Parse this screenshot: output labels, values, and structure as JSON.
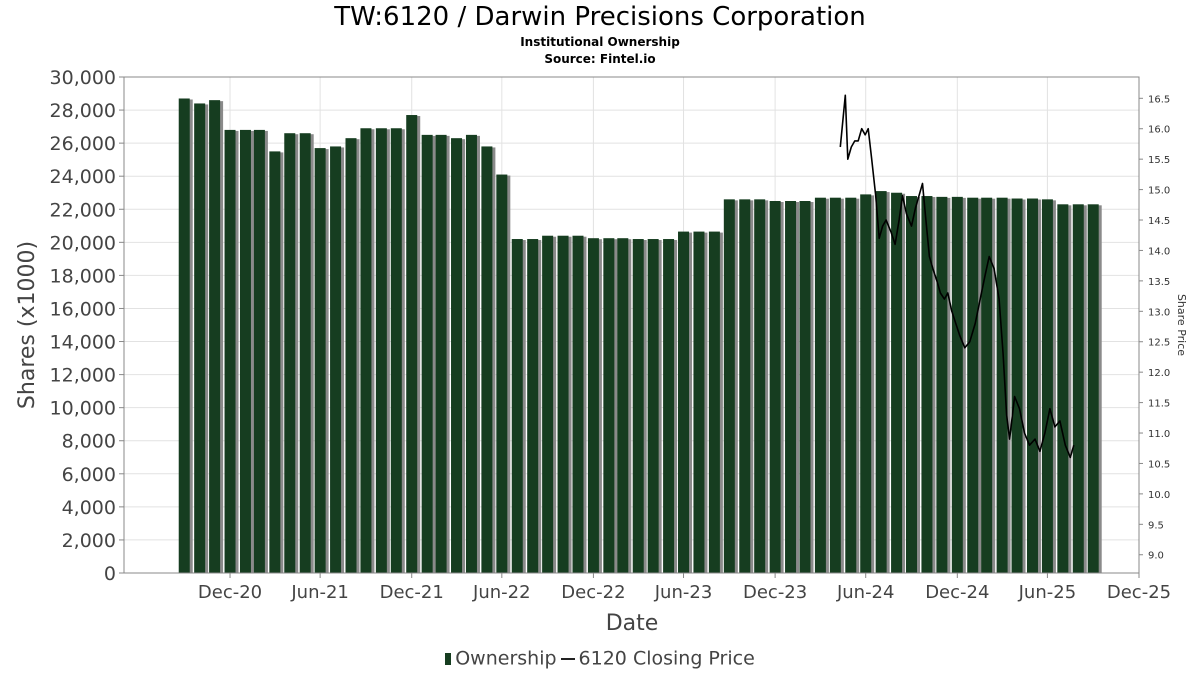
{
  "header": {
    "title": "TW:6120 / Darwin Precisions Corporation",
    "subtitle1": "Institutional Ownership",
    "subtitle2": "Source: Fintel.io"
  },
  "legend": {
    "ownership": "Ownership",
    "price": "6120 Closing Price"
  },
  "colors": {
    "bar": "#163d20",
    "bar_shadow": "#8a8a8a",
    "line": "#000000",
    "grid": "#e2e2e2"
  },
  "chart_data": {
    "type": "bar",
    "xlabel": "Date",
    "ylabel": "Shares (x1000)",
    "y2label": "Share Price",
    "ylim": [
      0,
      30000
    ],
    "y2lim": [
      8.7,
      16.85
    ],
    "grid": true,
    "legend_position": "bottom-center",
    "x_ticks": [
      "Dec-20",
      "Jun-21",
      "Dec-21",
      "Jun-22",
      "Dec-22",
      "Jun-23",
      "Dec-23",
      "Jun-24",
      "Dec-24",
      "Jun-25",
      "Dec-25"
    ],
    "y_ticks": [
      "0",
      "2,000",
      "4,000",
      "6,000",
      "8,000",
      "10,000",
      "12,000",
      "14,000",
      "16,000",
      "18,000",
      "20,000",
      "22,000",
      "24,000",
      "26,000",
      "28,000",
      "30,000"
    ],
    "y2_ticks": [
      "9.0",
      "9.5",
      "10.0",
      "10.5",
      "11.0",
      "11.5",
      "12.0",
      "12.5",
      "13.0",
      "13.5",
      "14.0",
      "14.5",
      "15.0",
      "15.5",
      "16.0",
      "16.5"
    ],
    "x_range": [
      "2020-06-01",
      "2025-12-31"
    ],
    "series": [
      {
        "name": "Ownership",
        "type": "bar",
        "x": [
          "2020-09-30",
          "2020-10-31",
          "2020-11-30",
          "2020-12-31",
          "2021-01-31",
          "2021-02-28",
          "2021-03-31",
          "2021-04-30",
          "2021-05-31",
          "2021-06-30",
          "2021-07-31",
          "2021-08-31",
          "2021-09-30",
          "2021-10-31",
          "2021-11-30",
          "2021-12-31",
          "2022-01-31",
          "2022-02-28",
          "2022-03-31",
          "2022-04-30",
          "2022-05-31",
          "2022-06-30",
          "2022-07-31",
          "2022-08-31",
          "2022-09-30",
          "2022-10-31",
          "2022-11-30",
          "2022-12-31",
          "2023-01-31",
          "2023-02-28",
          "2023-03-31",
          "2023-04-30",
          "2023-05-31",
          "2023-06-30",
          "2023-07-31",
          "2023-08-31",
          "2023-09-30",
          "2023-10-31",
          "2023-11-30",
          "2023-12-31",
          "2024-01-31",
          "2024-02-29",
          "2024-03-31",
          "2024-04-30",
          "2024-05-31",
          "2024-06-30",
          "2024-07-31",
          "2024-08-31",
          "2024-09-30",
          "2024-10-31",
          "2024-11-30",
          "2024-12-31",
          "2025-01-31",
          "2025-02-28",
          "2025-03-31",
          "2025-04-30",
          "2025-05-31",
          "2025-06-30",
          "2025-07-31",
          "2025-08-31",
          "2025-09-30"
        ],
        "values": [
          28700,
          28400,
          28600,
          26800,
          26800,
          26800,
          25500,
          26600,
          26600,
          25700,
          25800,
          26300,
          26900,
          26900,
          26900,
          27700,
          26500,
          26500,
          26300,
          26500,
          25800,
          24100,
          20200,
          20200,
          20400,
          20400,
          20400,
          20250,
          20250,
          20250,
          20200,
          20200,
          20200,
          20650,
          20650,
          20650,
          22600,
          22600,
          22600,
          22500,
          22500,
          22500,
          22700,
          22700,
          22700,
          22900,
          23100,
          23000,
          22800,
          22800,
          22750,
          22750,
          22700,
          22700,
          22700,
          22650,
          22650,
          22600,
          22300,
          22300,
          22300
        ]
      },
      {
        "name": "6120 Closing Price",
        "type": "line",
        "x": [
          "2024-05-10",
          "2024-05-20",
          "2024-05-25",
          "2024-06-01",
          "2024-06-08",
          "2024-06-15",
          "2024-06-22",
          "2024-06-29",
          "2024-07-05",
          "2024-07-12",
          "2024-07-20",
          "2024-07-27",
          "2024-08-03",
          "2024-08-10",
          "2024-08-20",
          "2024-08-28",
          "2024-09-05",
          "2024-09-12",
          "2024-09-20",
          "2024-09-30",
          "2024-10-08",
          "2024-10-15",
          "2024-10-22",
          "2024-10-29",
          "2024-11-05",
          "2024-11-12",
          "2024-11-20",
          "2024-11-27",
          "2024-12-05",
          "2024-12-12",
          "2024-12-20",
          "2024-12-28",
          "2025-01-05",
          "2025-01-15",
          "2025-01-25",
          "2025-02-05",
          "2025-02-15",
          "2025-02-25",
          "2025-03-05",
          "2025-03-15",
          "2025-03-25",
          "2025-04-02",
          "2025-04-09",
          "2025-04-15",
          "2025-04-25",
          "2025-05-05",
          "2025-05-15",
          "2025-05-25",
          "2025-06-05",
          "2025-06-15",
          "2025-06-25",
          "2025-07-05",
          "2025-07-15",
          "2025-07-25",
          "2025-08-05",
          "2025-08-15",
          "2025-08-22"
        ],
        "values": [
          15.7,
          16.55,
          15.5,
          15.7,
          15.8,
          15.8,
          16.0,
          15.9,
          16.0,
          15.5,
          14.9,
          14.2,
          14.4,
          14.5,
          14.3,
          14.1,
          14.5,
          14.9,
          14.6,
          14.4,
          14.7,
          14.9,
          15.1,
          14.5,
          13.9,
          13.7,
          13.5,
          13.3,
          13.2,
          13.3,
          13.0,
          12.8,
          12.6,
          12.4,
          12.5,
          12.8,
          13.2,
          13.6,
          13.9,
          13.7,
          13.2,
          12.3,
          11.3,
          10.9,
          11.6,
          11.4,
          11.0,
          10.8,
          10.9,
          10.7,
          11.0,
          11.4,
          11.1,
          11.2,
          10.8,
          10.6,
          10.8
        ]
      }
    ]
  }
}
